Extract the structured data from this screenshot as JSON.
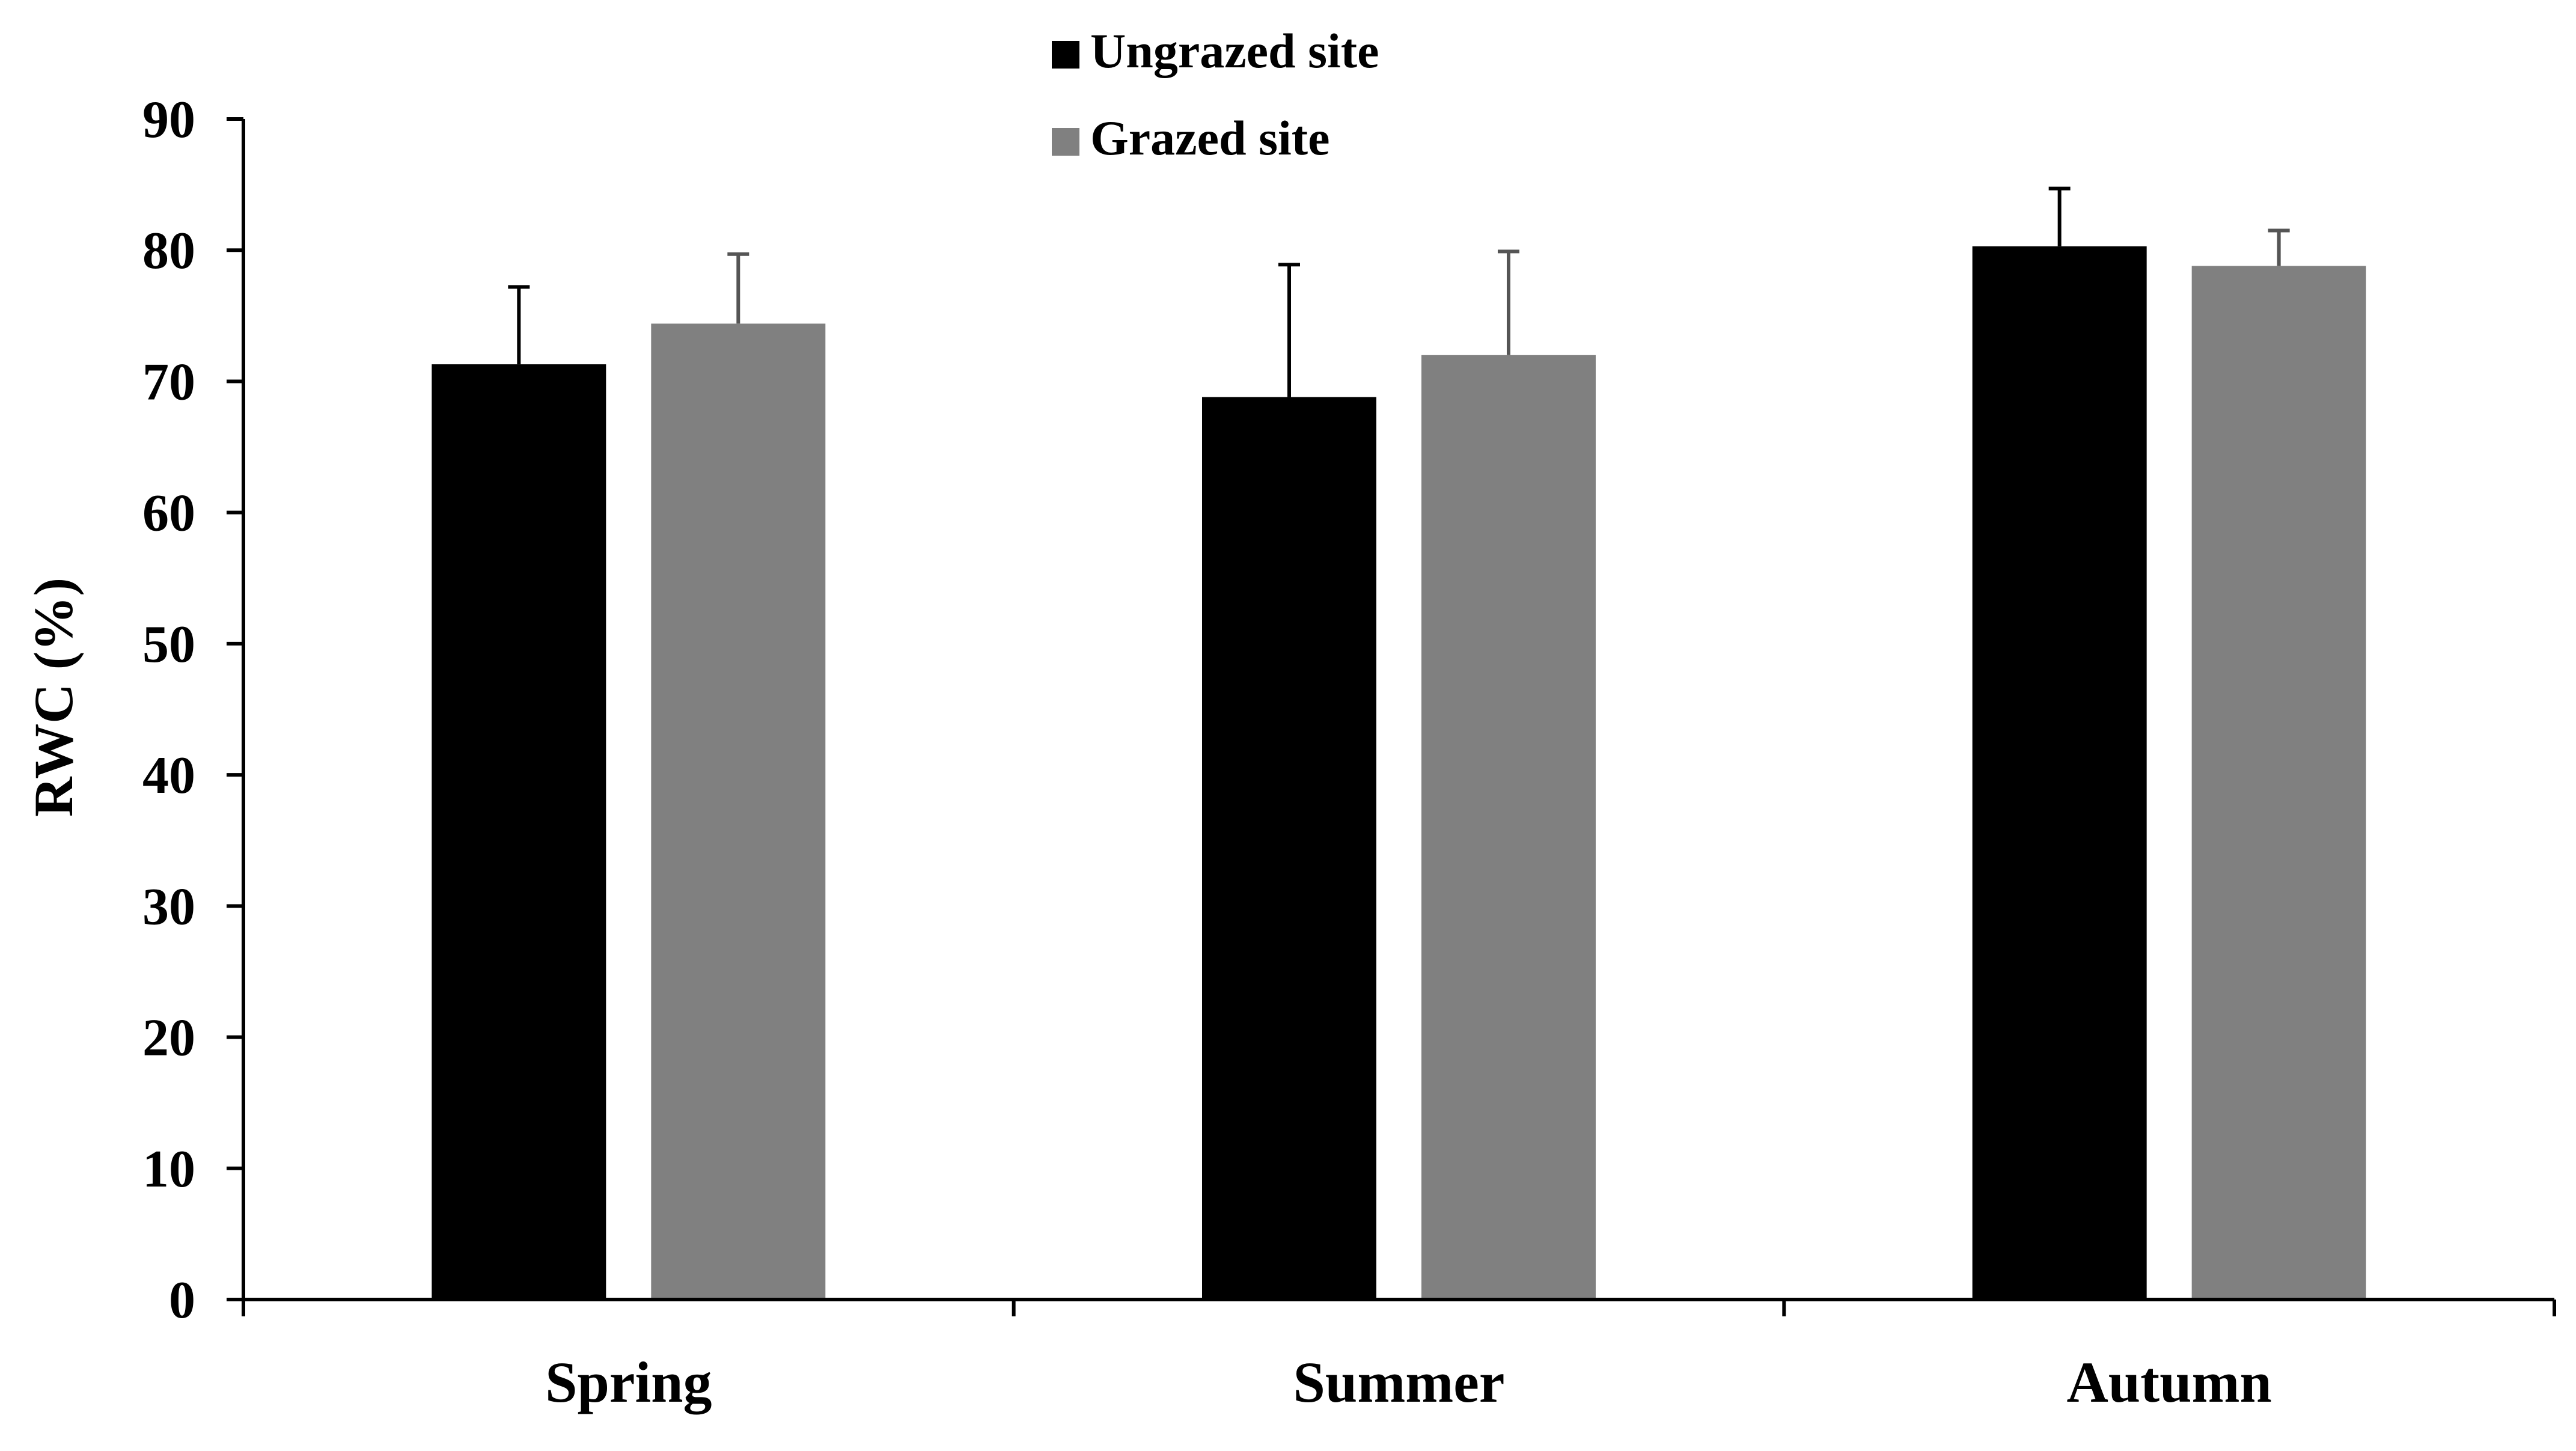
{
  "chart_data": {
    "type": "bar",
    "ylabel": "RWC (%)",
    "xlabel": "",
    "ylim": [
      0,
      90
    ],
    "yticks": [
      "0",
      "10",
      "20",
      "30",
      "40",
      "50",
      "60",
      "70",
      "80",
      "90"
    ],
    "categories": [
      "Spring",
      "Summer",
      "Autumn"
    ],
    "series": [
      {
        "name": "Ungrazed site",
        "color": "#000000",
        "values": [
          71.3,
          68.8,
          80.3
        ],
        "errors": [
          5.9,
          10.1,
          4.4
        ]
      },
      {
        "name": "Grazed site",
        "color": "#808080",
        "values": [
          74.4,
          72.0,
          78.8
        ],
        "errors": [
          5.3,
          7.9,
          2.7
        ]
      }
    ],
    "legend_position": "top-center",
    "grid": false
  }
}
